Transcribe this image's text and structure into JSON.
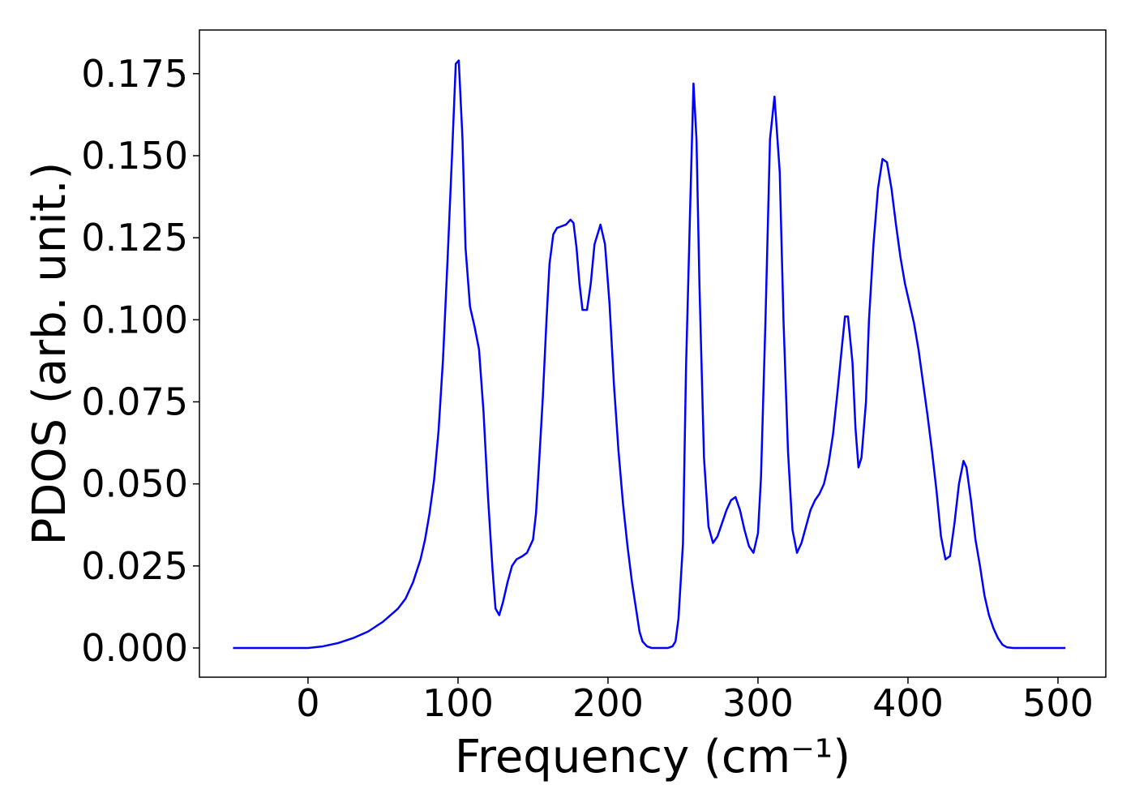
{
  "chart_data": {
    "type": "line",
    "xlabel": "Frequency (cm⁻¹)",
    "ylabel": "PDOS (arb. unit.)",
    "x": [
      -50,
      0,
      10,
      20,
      30,
      40,
      50,
      60,
      65,
      70,
      75,
      78,
      81,
      84,
      87,
      90,
      93,
      96,
      98.5,
      100.5,
      103,
      105,
      108,
      111,
      114,
      117,
      120,
      123,
      125,
      127.5,
      130,
      133,
      136,
      139,
      143,
      146,
      148,
      150,
      152,
      154,
      156.5,
      159,
      161,
      163.5,
      166,
      169,
      172,
      175,
      177,
      179,
      181,
      183,
      186,
      188.5,
      191,
      195,
      198,
      201,
      204,
      207,
      210,
      213,
      216,
      219,
      221,
      223,
      226,
      229,
      232,
      240,
      243,
      245,
      247,
      250,
      252,
      255,
      257,
      259,
      261,
      264,
      267,
      270,
      273,
      276,
      279,
      282,
      285,
      288,
      291,
      294,
      297,
      300,
      302,
      305,
      308,
      311,
      314.5,
      317,
      320,
      323,
      326,
      329,
      332,
      335,
      338,
      341,
      344,
      347,
      350,
      353,
      356,
      358,
      360,
      363,
      365,
      367,
      369,
      372,
      374,
      377,
      380,
      383,
      386,
      389,
      392,
      395,
      398,
      401,
      404,
      407,
      410,
      413,
      416,
      419,
      422,
      425,
      428,
      431,
      434,
      437,
      439,
      442,
      445,
      448,
      451,
      454,
      457,
      460,
      463,
      466,
      470,
      475,
      505
    ],
    "series": [
      {
        "name": "PDOS",
        "color": "#0000ff",
        "values": [
          0,
          0,
          0.0005,
          0.0015,
          0.003,
          0.005,
          0.008,
          0.012,
          0.015,
          0.02,
          0.027,
          0.033,
          0.041,
          0.051,
          0.066,
          0.088,
          0.118,
          0.15,
          0.178,
          0.179,
          0.155,
          0.122,
          0.104,
          0.098,
          0.091,
          0.072,
          0.046,
          0.024,
          0.012,
          0.01,
          0.014,
          0.02,
          0.025,
          0.027,
          0.028,
          0.029,
          0.031,
          0.033,
          0.041,
          0.056,
          0.076,
          0.1,
          0.117,
          0.126,
          0.128,
          0.1285,
          0.129,
          0.1305,
          0.1295,
          0.122,
          0.111,
          0.103,
          0.103,
          0.111,
          0.123,
          0.129,
          0.123,
          0.105,
          0.08,
          0.06,
          0.044,
          0.031,
          0.02,
          0.011,
          0.005,
          0.002,
          0.0005,
          0,
          0,
          0,
          0.0005,
          0.002,
          0.009,
          0.032,
          0.085,
          0.138,
          0.172,
          0.155,
          0.11,
          0.058,
          0.037,
          0.032,
          0.034,
          0.038,
          0.042,
          0.045,
          0.046,
          0.042,
          0.036,
          0.031,
          0.029,
          0.035,
          0.052,
          0.1,
          0.155,
          0.168,
          0.145,
          0.1,
          0.06,
          0.036,
          0.029,
          0.032,
          0.037,
          0.042,
          0.045,
          0.047,
          0.05,
          0.056,
          0.065,
          0.078,
          0.092,
          0.101,
          0.101,
          0.087,
          0.067,
          0.055,
          0.058,
          0.075,
          0.1,
          0.123,
          0.14,
          0.149,
          0.148,
          0.14,
          0.129,
          0.119,
          0.111,
          0.105,
          0.099,
          0.091,
          0.081,
          0.071,
          0.06,
          0.048,
          0.034,
          0.027,
          0.028,
          0.038,
          0.05,
          0.057,
          0.055,
          0.045,
          0.033,
          0.025,
          0.016,
          0.01,
          0.006,
          0.003,
          0.001,
          0.0002,
          0,
          0,
          0
        ]
      }
    ],
    "xlim": [
      -72.4,
      531.9
    ],
    "ylim": [
      -0.0089,
      0.1883
    ],
    "xticks": [
      0,
      100,
      200,
      300,
      400,
      500
    ],
    "yticks": [
      {
        "value": 0,
        "label": "0.000"
      },
      {
        "value": 0.025,
        "label": "0.025"
      },
      {
        "value": 0.05,
        "label": "0.050"
      },
      {
        "value": 0.075,
        "label": "0.075"
      },
      {
        "value": 0.1,
        "label": "0.100"
      },
      {
        "value": 0.125,
        "label": "0.125"
      },
      {
        "value": 0.15,
        "label": "0.150"
      },
      {
        "value": 0.175,
        "label": "0.175"
      }
    ],
    "grid": false
  }
}
